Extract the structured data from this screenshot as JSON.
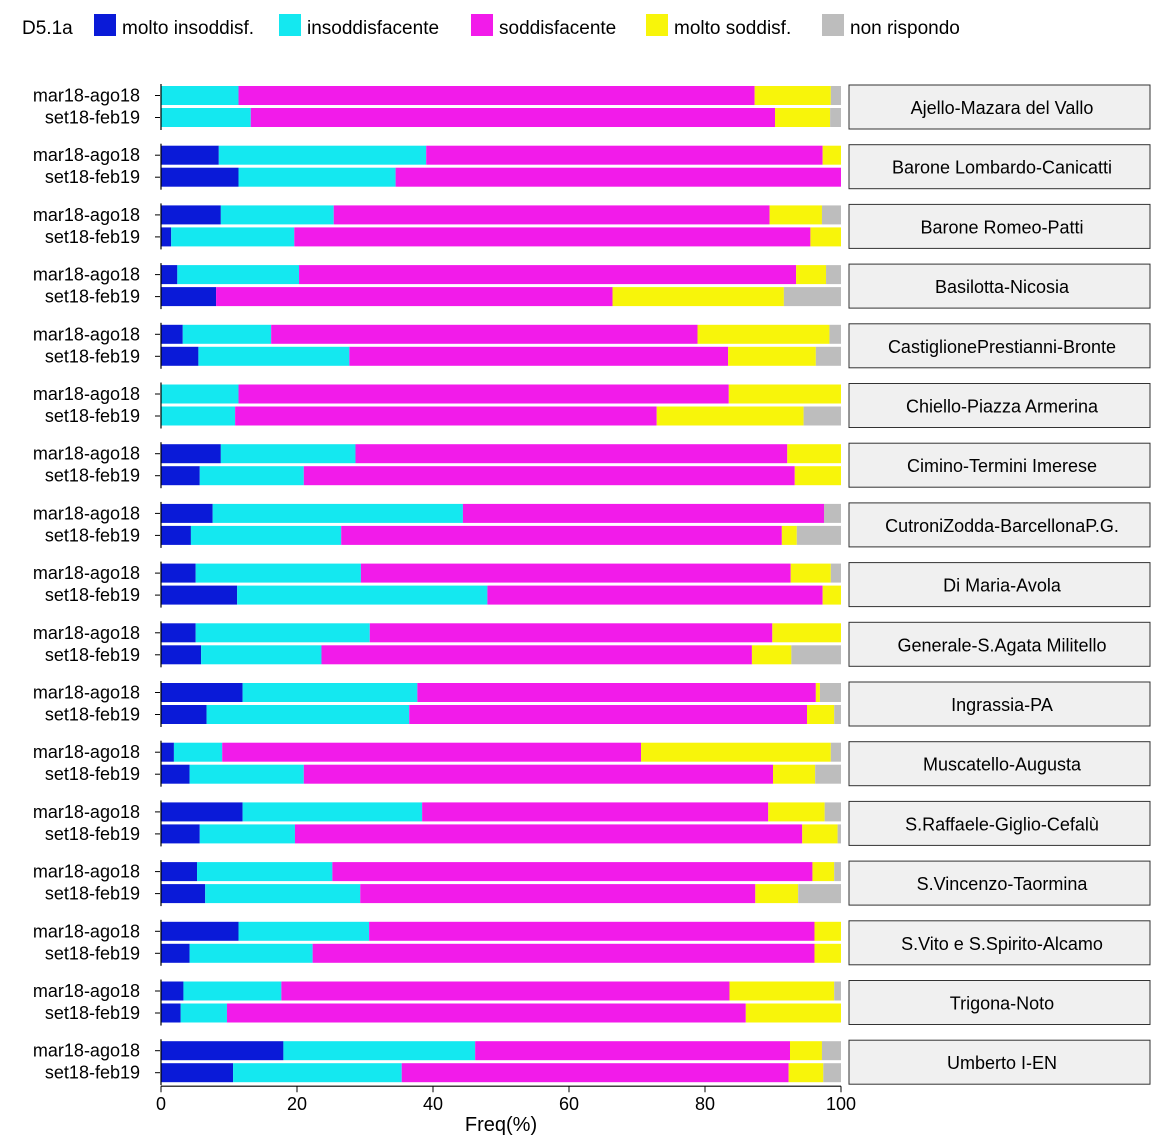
{
  "legend": {
    "title": "D5.1a",
    "items": [
      {
        "label": "molto insoddisf.",
        "color": "#0a1ad8"
      },
      {
        "label": "insoddisfacente",
        "color": "#14e8f0"
      },
      {
        "label": "soddisfacente",
        "color": "#f21bea"
      },
      {
        "label": "molto soddisf.",
        "color": "#f8f50a"
      },
      {
        "label": "non rispondo",
        "color": "#bdbdbd"
      }
    ]
  },
  "chart_data": {
    "type": "bar",
    "orientation": "horizontal",
    "stacked": true,
    "xlabel": "Freq(%)",
    "xlim": [
      0,
      100
    ],
    "xticks": [
      0,
      20,
      40,
      60,
      80,
      100
    ],
    "periods": [
      "mar18-ago18",
      "set18-feb19"
    ],
    "series": [
      "molto insoddisf.",
      "insoddisfacente",
      "soddisfacente",
      "molto soddisf.",
      "non rispondo"
    ],
    "facets": [
      {
        "name": "Ajello-Mazara del Vallo",
        "rows": [
          [
            0,
            11.4,
            75.9,
            11.2,
            1.5
          ],
          [
            0,
            13.2,
            77.1,
            8.1,
            1.6
          ]
        ]
      },
      {
        "name": "Barone Lombardo-Canicatti",
        "rows": [
          [
            8.5,
            30.5,
            58.3,
            2.7,
            0
          ],
          [
            11.4,
            23.1,
            65.5,
            0,
            0
          ]
        ]
      },
      {
        "name": "Barone Romeo-Patti",
        "rows": [
          [
            8.8,
            16.6,
            64.1,
            7.7,
            2.8
          ],
          [
            1.5,
            18.1,
            75.9,
            4.5,
            0
          ]
        ]
      },
      {
        "name": "Basilotta-Nicosia",
        "rows": [
          [
            2.4,
            17.9,
            73.1,
            4.4,
            2.2
          ],
          [
            8.1,
            0,
            58.3,
            25.2,
            8.4
          ]
        ]
      },
      {
        "name": "CastiglionePrestianni-Bronte",
        "rows": [
          [
            3.2,
            13,
            62.7,
            19.4,
            1.7
          ],
          [
            5.5,
            22.2,
            55.7,
            12.9,
            3.7
          ]
        ]
      },
      {
        "name": "Chiello-Piazza Armerina",
        "rows": [
          [
            0,
            11.4,
            72.1,
            16.5,
            0
          ],
          [
            0,
            10.9,
            62,
            21.6,
            5.5
          ]
        ]
      },
      {
        "name": "Cimino-Termini Imerese",
        "rows": [
          [
            8.8,
            19.8,
            63.5,
            7.9,
            0
          ],
          [
            5.7,
            15.3,
            72.2,
            6.8,
            0
          ]
        ]
      },
      {
        "name": "CutroniZodda-BarcellonaP.G.",
        "rows": [
          [
            7.6,
            36.8,
            53.1,
            0,
            2.5
          ],
          [
            4.4,
            22.1,
            64.8,
            2.2,
            6.5
          ]
        ]
      },
      {
        "name": "Di Maria-Avola",
        "rows": [
          [
            5.1,
            24.3,
            63.2,
            5.9,
            1.5
          ],
          [
            11.2,
            36.8,
            49.3,
            2.7,
            0
          ]
        ]
      },
      {
        "name": "Generale-S.Agata Militello",
        "rows": [
          [
            5.1,
            25.6,
            59.2,
            10.1,
            0
          ],
          [
            5.9,
            17.7,
            63.3,
            5.8,
            7.3
          ]
        ]
      },
      {
        "name": "Ingrassia-PA",
        "rows": [
          [
            12,
            25.7,
            58.6,
            0.6,
            3.1
          ],
          [
            6.7,
            29.8,
            58.5,
            4,
            1
          ]
        ]
      },
      {
        "name": "Muscatello-Augusta",
        "rows": [
          [
            1.9,
            7.1,
            61.6,
            27.9,
            1.5
          ],
          [
            4.2,
            16.8,
            69,
            6.2,
            3.8
          ]
        ]
      },
      {
        "name": "S.Raffaele-Giglio-Cefalù",
        "rows": [
          [
            12,
            26.4,
            50.9,
            8.3,
            2.4
          ],
          [
            5.7,
            14,
            74.6,
            5.2,
            0.5
          ]
        ]
      },
      {
        "name": "S.Vincenzo-Taormina",
        "rows": [
          [
            5.3,
            19.9,
            70.6,
            3.2,
            1
          ],
          [
            6.5,
            22.8,
            58.1,
            6.3,
            6.3
          ]
        ]
      },
      {
        "name": "S.Vito e S.Spirito-Alcamo",
        "rows": [
          [
            11.4,
            19.2,
            65.5,
            3.9,
            0
          ],
          [
            4.2,
            18.1,
            73.8,
            3.9,
            0
          ]
        ]
      },
      {
        "name": "Trigona-Noto",
        "rows": [
          [
            3.3,
            14.4,
            65.9,
            15.4,
            1
          ],
          [
            2.9,
            6.8,
            76.3,
            14,
            0
          ]
        ]
      },
      {
        "name": "Umberto I-EN",
        "rows": [
          [
            18,
            28.2,
            46.3,
            4.7,
            2.8
          ],
          [
            10.6,
            24.8,
            56.9,
            5.1,
            2.6
          ]
        ]
      }
    ]
  }
}
